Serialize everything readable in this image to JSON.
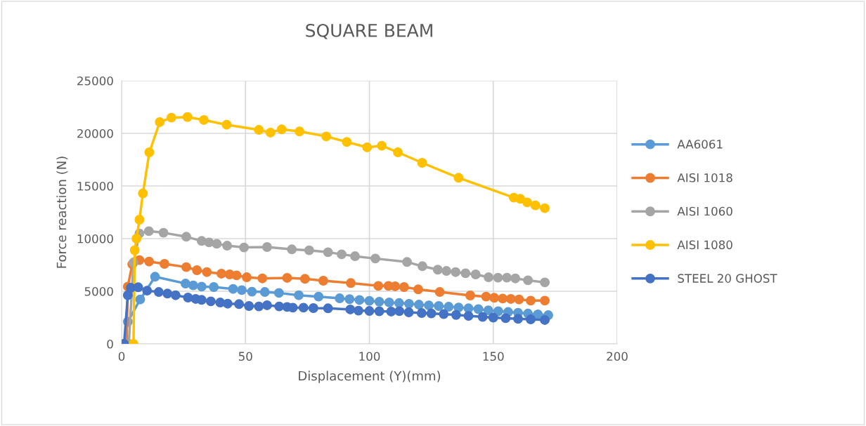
{
  "chart_data": {
    "type": "line",
    "title": "SQUARE BEAM",
    "xlabel": "Displacement (Y)(mm)",
    "ylabel": "Force reaction (N)",
    "xlim": [
      0,
      200
    ],
    "xticks": [
      0,
      50,
      100,
      150,
      200
    ],
    "ylim": [
      0,
      25000
    ],
    "yticks": [
      0,
      5000,
      10000,
      15000,
      20000,
      25000
    ],
    "grid": true,
    "legend": "right",
    "marker": "circle",
    "line_style": "solid",
    "series": [
      {
        "name": "AA6061",
        "color": "#5b9bd5",
        "x": [
          1.0,
          2.5,
          7.5,
          13.5,
          25.8,
          28.9,
          32.3,
          37.2,
          45.0,
          48.5,
          52.6,
          57.8,
          63.5,
          71.5,
          79.5,
          88.0,
          92,
          96,
          100,
          104,
          108,
          112,
          116,
          120,
          124,
          128,
          132,
          136,
          140,
          144,
          148,
          152,
          156,
          160,
          164,
          168,
          172.2
        ],
        "values": [
          0,
          2110,
          4220,
          6380,
          5730,
          5560,
          5440,
          5400,
          5220,
          5110,
          4960,
          4930,
          4840,
          4620,
          4490,
          4330,
          4250,
          4170,
          4090,
          4010,
          3940,
          3880,
          3810,
          3730,
          3660,
          3600,
          3530,
          3460,
          3380,
          3300,
          3190,
          3100,
          3030,
          2960,
          2880,
          2800,
          2730
        ]
      },
      {
        "name": "AISI 1018",
        "color": "#ed7d31",
        "x": [
          2.0,
          2.5,
          4.3,
          7.2,
          11.1,
          17.3,
          26.1,
          30.4,
          34.4,
          40.3,
          43.6,
          46.4,
          50.5,
          56.8,
          66.8,
          74.0,
          81.4,
          92.5,
          103.6,
          107.7,
          110.4,
          114.0,
          119.7,
          128.4,
          140.7,
          147.1,
          150.4,
          153.8,
          157.1,
          160.4,
          165.1,
          170.8
        ],
        "values": [
          0,
          5440,
          7560,
          7960,
          7820,
          7600,
          7290,
          7000,
          6820,
          6670,
          6600,
          6510,
          6330,
          6220,
          6270,
          6180,
          6000,
          5780,
          5510,
          5510,
          5470,
          5400,
          5180,
          4930,
          4600,
          4490,
          4380,
          4310,
          4270,
          4220,
          4110,
          4110
        ]
      },
      {
        "name": "AISI 1060",
        "color": "#a5a5a5",
        "x": [
          2.9,
          4.8,
          7.2,
          11.0,
          16.9,
          26.1,
          32.3,
          35.3,
          38.4,
          42.6,
          49.4,
          58.7,
          68.7,
          75.7,
          83.3,
          88.8,
          94.2,
          102.4,
          115.2,
          121.4,
          127.6,
          131.1,
          134.8,
          138.8,
          142.9,
          148.1,
          151.9,
          155.5,
          158.9,
          164.0,
          170.8
        ],
        "values": [
          0,
          7730,
          10490,
          10710,
          10560,
          10180,
          9780,
          9640,
          9510,
          9330,
          9160,
          9200,
          8980,
          8890,
          8710,
          8510,
          8330,
          8110,
          7780,
          7380,
          7050,
          6930,
          6820,
          6710,
          6600,
          6330,
          6290,
          6290,
          6220,
          6040,
          5840
        ]
      },
      {
        "name": "AISI 1080",
        "color": "#ffc000",
        "x": [
          1.0,
          4.8,
          5.3,
          6.0,
          7.2,
          8.6,
          11.2,
          15.4,
          20.1,
          26.6,
          33.2,
          42.4,
          55.4,
          60.1,
          64.6,
          71.8,
          82.6,
          90.9,
          99.1,
          105.0,
          111.5,
          121.3,
          136.0,
          158.3,
          160.9,
          163.7,
          167.0,
          170.8
        ],
        "values": [
          0,
          0,
          8900,
          10000,
          11800,
          14300,
          18200,
          21070,
          21490,
          21550,
          21270,
          20820,
          20330,
          20070,
          20380,
          20180,
          19710,
          19180,
          18670,
          18820,
          18200,
          17200,
          15780,
          13890,
          13780,
          13440,
          13160,
          12890
        ]
      },
      {
        "name": "STEEL 20 GHOST",
        "color": "#4472c4",
        "x": [
          1.0,
          2.5,
          3.7,
          6.7,
          10.3,
          15.0,
          18.5,
          21.8,
          26.8,
          29.9,
          32.3,
          36.0,
          39.8,
          42.8,
          47.4,
          51.4,
          55.4,
          58.7,
          63.6,
          66.8,
          69.1,
          73.4,
          77.4,
          83.3,
          92.3,
          95.6,
          100,
          104,
          108.8,
          112.1,
          115.9,
          121.1,
          125,
          130,
          135,
          140,
          145.7,
          150,
          155,
          160,
          165.1,
          170.8
        ],
        "values": [
          0,
          4620,
          5330,
          5380,
          5060,
          4930,
          4780,
          4620,
          4400,
          4270,
          4180,
          4040,
          3930,
          3820,
          3780,
          3600,
          3560,
          3670,
          3560,
          3510,
          3440,
          3440,
          3400,
          3380,
          3270,
          3160,
          3130,
          3100,
          3070,
          3110,
          3000,
          2930,
          2890,
          2830,
          2750,
          2660,
          2560,
          2500,
          2440,
          2380,
          2330,
          2270
        ]
      }
    ]
  }
}
